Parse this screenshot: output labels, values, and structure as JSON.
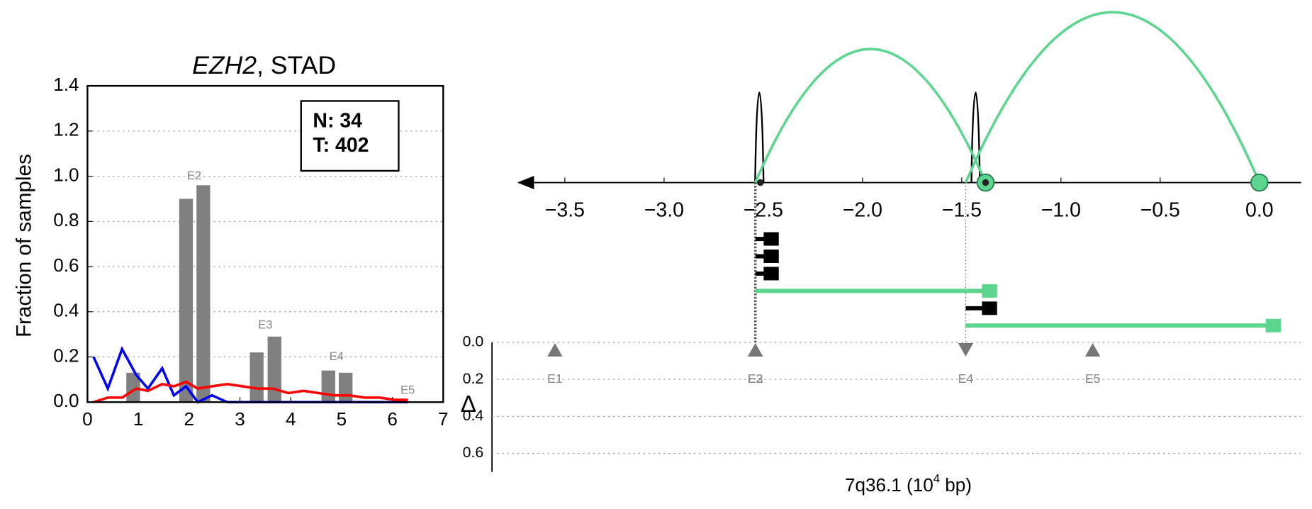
{
  "chart_data": [
    {
      "type": "bar_line",
      "title_parts": [
        "EZH2",
        ", STAD"
      ],
      "ylabel": "Fraction of samples",
      "xlim": [
        0,
        7
      ],
      "xticks": [
        0,
        1,
        2,
        3,
        4,
        5,
        6,
        7
      ],
      "ylim": [
        0,
        1.4
      ],
      "yticks": [
        {
          "value": 0,
          "label": "0.0"
        },
        0.2,
        0.4,
        0.6,
        0.8,
        {
          "value": 1,
          "label": "1.0"
        },
        1.2,
        1.4
      ],
      "grid": true,
      "counts": [
        "N: 34",
        "T: 402"
      ],
      "bars": {
        "color": "#808080",
        "width": 0.27,
        "x": [
          0.9,
          1.94,
          2.28,
          3.33,
          3.68,
          4.74,
          5.08
        ],
        "values": [
          0.13,
          0.9,
          0.96,
          0.22,
          0.29,
          0.14,
          0.13
        ]
      },
      "x": [
        0.12,
        0.4,
        0.68,
        0.96,
        1.19,
        1.47,
        1.7,
        1.94,
        2.17,
        2.45,
        2.75,
        3.05,
        3.35,
        3.65,
        3.95,
        4.25,
        4.55,
        4.85,
        5.15,
        5.45,
        5.75,
        6.05,
        6.3
      ],
      "series": [
        {
          "color": "#0000ff",
          "values": [
            0.2,
            0.06,
            0.235,
            0.12,
            0.06,
            0.15,
            0.03,
            0.07,
            0,
            0.03,
            0,
            0,
            0,
            0,
            0,
            0,
            0,
            0,
            0,
            0,
            0,
            0,
            0
          ]
        },
        {
          "color": "#ff0000",
          "values": [
            0,
            0.02,
            0.02,
            0.06,
            0.05,
            0.08,
            0.07,
            0.09,
            0.06,
            0.07,
            0.08,
            0.07,
            0.06,
            0.06,
            0.04,
            0.05,
            0.04,
            0.03,
            0.03,
            0.02,
            0.02,
            0.01,
            0.01
          ]
        }
      ],
      "exon_labels": {
        "labels": [
          "E2",
          "E3",
          "E4",
          "E5"
        ],
        "x": [
          2.1,
          3.5,
          4.9,
          6.3
        ],
        "y": [
          1.0,
          0.34,
          0.2,
          0.05
        ]
      }
    },
    {
      "type": "track",
      "xlim": [
        -3.74,
        0.21
      ],
      "xticks": [
        {
          "value": -3.5,
          "label": "−3.5"
        },
        {
          "value": -3,
          "label": "−3.0"
        },
        {
          "value": -2.5,
          "label": "−2.5"
        },
        {
          "value": -2,
          "label": "−2.0"
        },
        {
          "value": -1.5,
          "label": "−1.5"
        },
        {
          "value": -1,
          "label": "−1.0"
        },
        {
          "value": -0.5,
          "label": "−0.5"
        },
        {
          "value": 0,
          "label": "0.0"
        }
      ],
      "arc_color": "#5cd68f",
      "arcs": [
        {
          "start": -2.54,
          "end": -1.38
        },
        {
          "start": -1.48,
          "end": 0
        }
      ],
      "peaks": [
        -2.52,
        -1.43
      ],
      "segments": [
        {
          "start": -2.54,
          "end": -2.46,
          "color": "#000000"
        },
        {
          "start": -2.54,
          "end": -2.46,
          "color": "#000000"
        },
        {
          "start": -2.54,
          "end": -2.46,
          "color": "#000000"
        },
        {
          "start": -2.54,
          "end": -1.36,
          "color": "#5cd68f"
        },
        {
          "start": -1.48,
          "end": -1.36,
          "color": "#000000"
        },
        {
          "start": -1.48,
          "end": 0.07,
          "color": "#5cd68f"
        }
      ],
      "guides": [
        -2.54,
        -1.48
      ],
      "ylabel": "Δ",
      "ylim": [
        0,
        0.7
      ],
      "yticks": [
        {
          "value": 0,
          "label": "0.0"
        },
        0.2,
        0.4,
        0.6
      ],
      "exons": {
        "labels": [
          "E1",
          "E2",
          "E3",
          "E4",
          "E5"
        ],
        "x": [
          -3.55,
          -2.54,
          -2.54,
          -1.48,
          -0.84
        ],
        "values": [
          0.04,
          0.04,
          0.04,
          0.04,
          0.04
        ],
        "directions": [
          "up",
          "up",
          "up",
          "down",
          "up"
        ]
      },
      "xlabel_parts": [
        "7q36.1 (10",
        "4",
        " bp)"
      ]
    }
  ]
}
